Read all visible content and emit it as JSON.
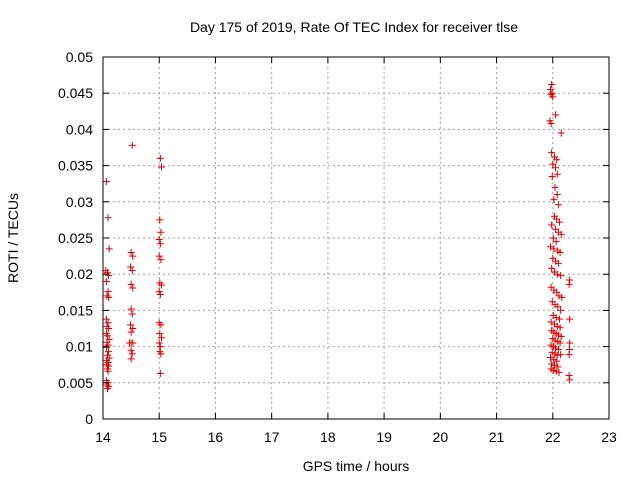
{
  "chart_data": {
    "type": "scatter",
    "title": "Day 175 of 2019, Rate Of TEC Index for receiver tlse",
    "xlabel": "GPS time / hours",
    "ylabel": "ROTI / TECUs",
    "xlim": [
      14,
      23
    ],
    "ylim": [
      0,
      0.05
    ],
    "grid": true,
    "marker": "+",
    "marker_color": "#e00000",
    "x_ticks": [
      {
        "value": 14,
        "label": "14"
      },
      {
        "value": 15,
        "label": "15"
      },
      {
        "value": 16,
        "label": "16"
      },
      {
        "value": 17,
        "label": "17"
      },
      {
        "value": 18,
        "label": "18"
      },
      {
        "value": 19,
        "label": "19"
      },
      {
        "value": 20,
        "label": "20"
      },
      {
        "value": 21,
        "label": "21"
      },
      {
        "value": 22,
        "label": "22"
      },
      {
        "value": 23,
        "label": "23"
      }
    ],
    "y_ticks": [
      {
        "value": 0,
        "label": "0"
      },
      {
        "value": 0.005,
        "label": "0.005"
      },
      {
        "value": 0.01,
        "label": "0.01"
      },
      {
        "value": 0.015,
        "label": "0.015"
      },
      {
        "value": 0.02,
        "label": "0.02"
      },
      {
        "value": 0.025,
        "label": "0.025"
      },
      {
        "value": 0.03,
        "label": "0.03"
      },
      {
        "value": 0.035,
        "label": "0.035"
      },
      {
        "value": 0.04,
        "label": "0.04"
      },
      {
        "value": 0.045,
        "label": "0.045"
      },
      {
        "value": 0.05,
        "label": "0.05"
      }
    ],
    "series": [
      {
        "name": "ROTI",
        "points": [
          [
            14.06,
            0.0328
          ],
          [
            14.09,
            0.0278
          ],
          [
            14.11,
            0.0235
          ],
          [
            14.05,
            0.0205
          ],
          [
            14.08,
            0.0202
          ],
          [
            14.1,
            0.0198
          ],
          [
            14.06,
            0.019
          ],
          [
            14.09,
            0.0176
          ],
          [
            14.07,
            0.017
          ],
          [
            14.1,
            0.0168
          ],
          [
            14.06,
            0.0138
          ],
          [
            14.09,
            0.0133
          ],
          [
            14.07,
            0.0128
          ],
          [
            14.1,
            0.0125
          ],
          [
            14.06,
            0.0118
          ],
          [
            14.08,
            0.0115
          ],
          [
            14.11,
            0.011
          ],
          [
            14.07,
            0.0106
          ],
          [
            14.09,
            0.0102
          ],
          [
            14.06,
            0.0099
          ],
          [
            14.1,
            0.0093
          ],
          [
            14.08,
            0.0088
          ],
          [
            14.11,
            0.0084
          ],
          [
            14.06,
            0.0081
          ],
          [
            14.09,
            0.0078
          ],
          [
            14.07,
            0.0075
          ],
          [
            14.1,
            0.0073
          ],
          [
            14.08,
            0.0069
          ],
          [
            14.09,
            0.0066
          ],
          [
            14.06,
            0.0053
          ],
          [
            14.09,
            0.005
          ],
          [
            14.07,
            0.0047
          ],
          [
            14.1,
            0.0045
          ],
          [
            14.08,
            0.0042
          ],
          [
            14.52,
            0.0378
          ],
          [
            14.5,
            0.023
          ],
          [
            14.53,
            0.0225
          ],
          [
            14.49,
            0.021
          ],
          [
            14.52,
            0.0205
          ],
          [
            14.5,
            0.0186
          ],
          [
            14.53,
            0.0181
          ],
          [
            14.5,
            0.0152
          ],
          [
            14.52,
            0.0145
          ],
          [
            14.49,
            0.013
          ],
          [
            14.53,
            0.0125
          ],
          [
            14.5,
            0.012
          ],
          [
            14.47,
            0.0105
          ],
          [
            14.5,
            0.0105
          ],
          [
            14.53,
            0.0105
          ],
          [
            14.5,
            0.0095
          ],
          [
            14.52,
            0.009
          ],
          [
            14.5,
            0.0083
          ],
          [
            15.02,
            0.036
          ],
          [
            15.04,
            0.0348
          ],
          [
            15.01,
            0.0275
          ],
          [
            15.03,
            0.0258
          ],
          [
            15.0,
            0.0248
          ],
          [
            15.02,
            0.0242
          ],
          [
            15.0,
            0.0225
          ],
          [
            15.03,
            0.022
          ],
          [
            15.01,
            0.0188
          ],
          [
            15.04,
            0.0185
          ],
          [
            15.0,
            0.0176
          ],
          [
            15.02,
            0.0172
          ],
          [
            15.0,
            0.0133
          ],
          [
            15.03,
            0.013
          ],
          [
            15.01,
            0.0118
          ],
          [
            15.04,
            0.0112
          ],
          [
            15.0,
            0.0105
          ],
          [
            15.02,
            0.01
          ],
          [
            15.01,
            0.0093
          ],
          [
            15.03,
            0.009
          ],
          [
            15.02,
            0.0063
          ],
          [
            21.98,
            0.0462
          ],
          [
            21.96,
            0.0455
          ],
          [
            21.99,
            0.045
          ],
          [
            21.97,
            0.0448
          ],
          [
            22.0,
            0.0445
          ],
          [
            22.05,
            0.042
          ],
          [
            21.95,
            0.0412
          ],
          [
            21.97,
            0.0408
          ],
          [
            22.15,
            0.0395
          ],
          [
            21.98,
            0.0368
          ],
          [
            22.03,
            0.0362
          ],
          [
            22.07,
            0.0358
          ],
          [
            22.0,
            0.0352
          ],
          [
            22.05,
            0.0347
          ],
          [
            22.08,
            0.0338
          ],
          [
            21.99,
            0.0335
          ],
          [
            22.04,
            0.032
          ],
          [
            22.08,
            0.031
          ],
          [
            22.02,
            0.0303
          ],
          [
            22.1,
            0.0296
          ],
          [
            22.03,
            0.028
          ],
          [
            22.07,
            0.0276
          ],
          [
            22.12,
            0.0272
          ],
          [
            21.98,
            0.0268
          ],
          [
            22.05,
            0.0262
          ],
          [
            22.1,
            0.0258
          ],
          [
            22.15,
            0.0255
          ],
          [
            22.01,
            0.025
          ],
          [
            22.06,
            0.0245
          ],
          [
            21.96,
            0.0238
          ],
          [
            22.02,
            0.0235
          ],
          [
            22.09,
            0.0232
          ],
          [
            22.13,
            0.023
          ],
          [
            22.0,
            0.0222
          ],
          [
            22.05,
            0.0218
          ],
          [
            22.1,
            0.0215
          ],
          [
            21.98,
            0.0208
          ],
          [
            22.03,
            0.0203
          ],
          [
            22.08,
            0.02
          ],
          [
            22.14,
            0.0198
          ],
          [
            22.3,
            0.0192
          ],
          [
            22.29,
            0.0186
          ],
          [
            21.97,
            0.0182
          ],
          [
            22.02,
            0.0178
          ],
          [
            22.07,
            0.0175
          ],
          [
            22.11,
            0.017
          ],
          [
            22.16,
            0.0168
          ],
          [
            21.99,
            0.0162
          ],
          [
            22.04,
            0.0158
          ],
          [
            22.09,
            0.0155
          ],
          [
            22.14,
            0.015
          ],
          [
            22.01,
            0.0143
          ],
          [
            22.06,
            0.014
          ],
          [
            22.12,
            0.0138
          ],
          [
            22.3,
            0.0138
          ],
          [
            21.97,
            0.0134
          ],
          [
            22.03,
            0.0131
          ],
          [
            22.08,
            0.0128
          ],
          [
            22.13,
            0.0126
          ],
          [
            21.98,
            0.0122
          ],
          [
            22.02,
            0.012
          ],
          [
            22.06,
            0.0118
          ],
          [
            22.1,
            0.0116
          ],
          [
            22.15,
            0.0114
          ],
          [
            22.0,
            0.0111
          ],
          [
            22.04,
            0.0109
          ],
          [
            22.09,
            0.0107
          ],
          [
            22.13,
            0.0105
          ],
          [
            22.3,
            0.0105
          ],
          [
            21.97,
            0.0102
          ],
          [
            22.01,
            0.01
          ],
          [
            22.05,
            0.0098
          ],
          [
            22.1,
            0.0096
          ],
          [
            22.3,
            0.0096
          ],
          [
            21.99,
            0.0092
          ],
          [
            22.04,
            0.009
          ],
          [
            22.08,
            0.0088
          ],
          [
            22.14,
            0.0089
          ],
          [
            22.29,
            0.0089
          ],
          [
            21.96,
            0.0085
          ],
          [
            22.02,
            0.0082
          ],
          [
            22.07,
            0.008
          ],
          [
            21.98,
            0.0076
          ],
          [
            22.03,
            0.0074
          ],
          [
            22.09,
            0.0072
          ],
          [
            21.97,
            0.0069
          ],
          [
            22.01,
            0.0067
          ],
          [
            22.06,
            0.0066
          ],
          [
            22.11,
            0.0064
          ],
          [
            22.29,
            0.006
          ],
          [
            22.3,
            0.0054
          ]
        ]
      }
    ]
  }
}
